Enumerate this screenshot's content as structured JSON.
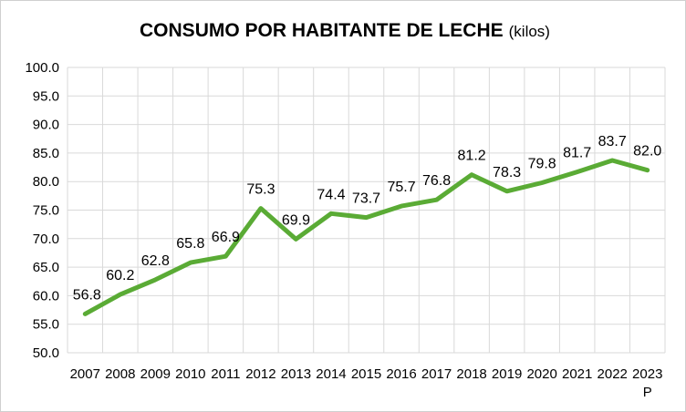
{
  "chart_data": {
    "type": "line",
    "title": "CONSUMO POR HABITANTE DE LECHE",
    "subtitle": "(kilos)",
    "xlabel": "",
    "ylabel": "",
    "categories": [
      "2007",
      "2008",
      "2009",
      "2010",
      "2011",
      "2012",
      "2013",
      "2014",
      "2015",
      "2016",
      "2017",
      "2018",
      "2019",
      "2020",
      "2021",
      "2022",
      "2023"
    ],
    "category_notes": {
      "2023": "P"
    },
    "series": [
      {
        "values": [
          56.8,
          60.2,
          62.8,
          65.8,
          66.9,
          75.3,
          69.9,
          74.4,
          73.7,
          75.7,
          76.8,
          81.2,
          78.3,
          79.8,
          81.7,
          83.7,
          82.0
        ]
      }
    ],
    "data_labels": [
      "56.8",
      "60.2",
      "62.8",
      "65.8",
      "66.9",
      "75.3",
      "69.9",
      "74.4",
      "73.7",
      "75.7",
      "76.8",
      "81.2",
      "78.3",
      "79.8",
      "81.7",
      "83.7",
      "82.0"
    ],
    "y_ticks": [
      "50.0",
      "55.0",
      "60.0",
      "65.0",
      "70.0",
      "75.0",
      "80.0",
      "85.0",
      "90.0",
      "95.0",
      "100.0"
    ],
    "ylim": [
      50,
      100
    ],
    "grid": true,
    "legend": "none",
    "line_color": "#5aab35",
    "grid_color": "#d9d9d9"
  }
}
